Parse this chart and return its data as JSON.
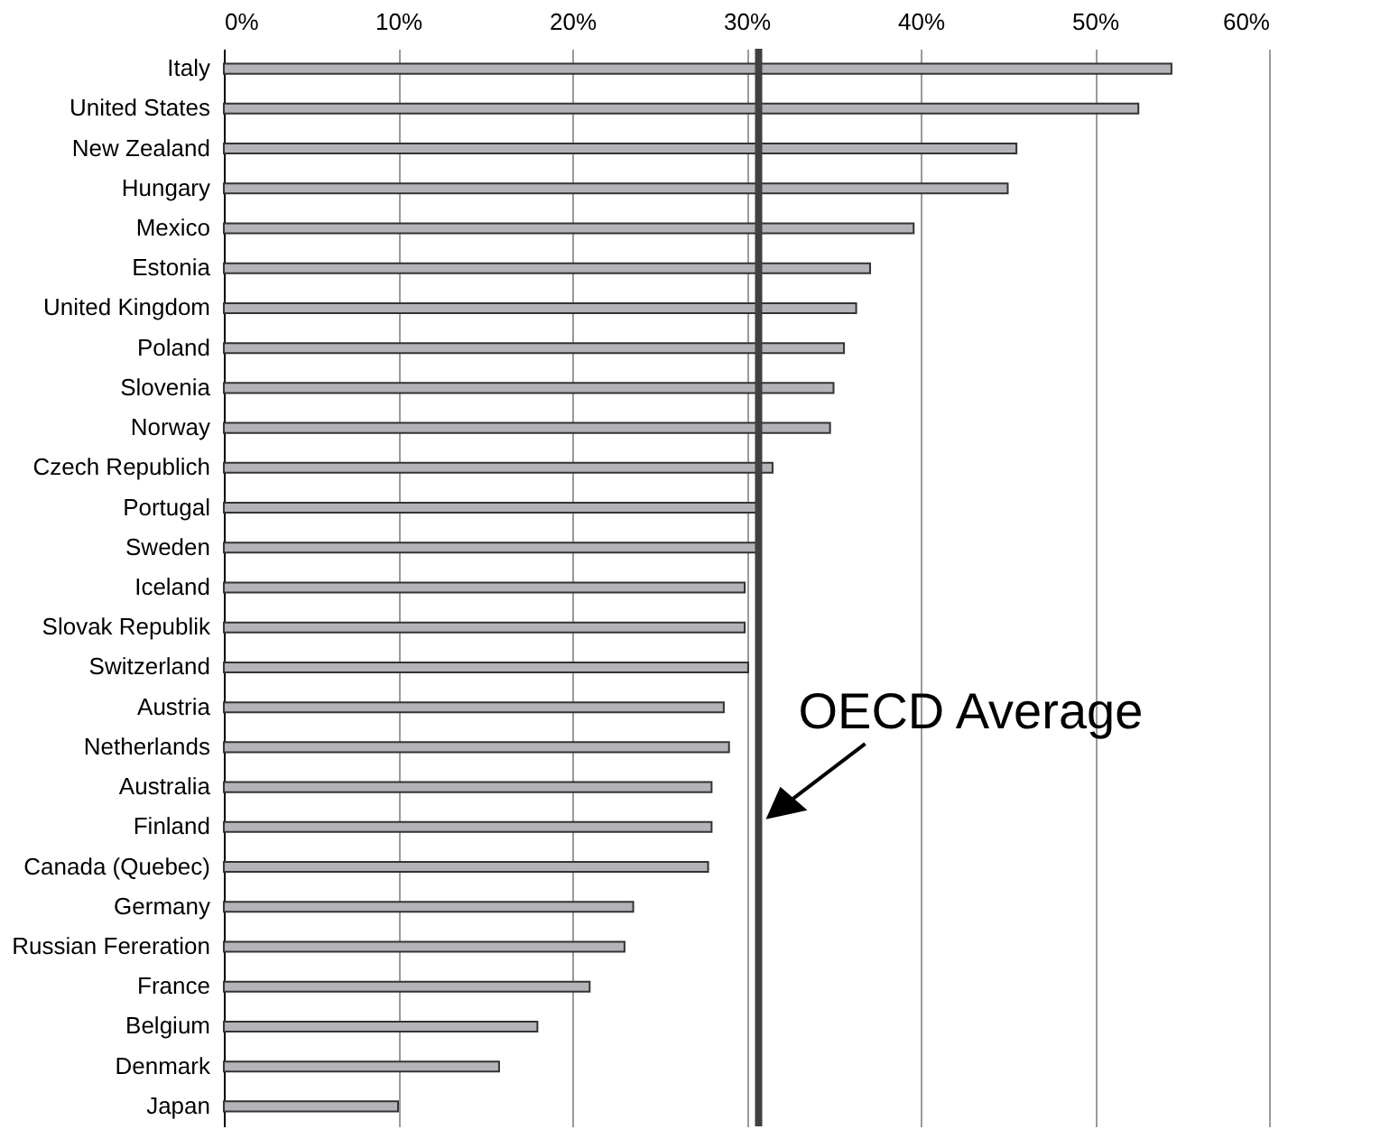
{
  "chart_data": {
    "type": "bar",
    "orientation": "horizontal",
    "categories": [
      "Italy",
      "United States",
      "New Zealand",
      "Hungary",
      "Mexico",
      "Estonia",
      "United Kingdom",
      "Poland",
      "Slovenia",
      "Norway",
      "Czech Republich",
      "Portugal",
      "Sweden",
      "Iceland",
      "Slovak Republik",
      "Switzerland",
      "Austria",
      "Netherlands",
      "Australia",
      "Finland",
      "Canada (Quebec)",
      "Germany",
      "Russian Fereration",
      "France",
      "Belgium",
      "Denmark",
      "Japan"
    ],
    "values": [
      54.4,
      52.5,
      45.5,
      45.0,
      39.6,
      37.1,
      36.3,
      35.6,
      35.0,
      34.8,
      31.5,
      30.6,
      30.6,
      29.9,
      29.9,
      30.1,
      28.7,
      29.0,
      28.0,
      28.0,
      27.8,
      23.5,
      23.0,
      21.0,
      18.0,
      15.8,
      10.0
    ],
    "color": "#b4b4b8",
    "xlim": [
      0,
      60
    ],
    "xticks": [
      {
        "value": 0,
        "label": "0%"
      },
      {
        "value": 10,
        "label": "10%"
      },
      {
        "value": 20,
        "label": "20%"
      },
      {
        "value": 30,
        "label": "30%"
      },
      {
        "value": 40,
        "label": "40%"
      },
      {
        "value": 50,
        "label": "50%"
      },
      {
        "value": 60,
        "label": "60%"
      }
    ],
    "grid": "x",
    "ref_lines": [
      {
        "axis": "x",
        "value": 30.7,
        "label": "OECD Average",
        "color": "#404040"
      }
    ]
  }
}
